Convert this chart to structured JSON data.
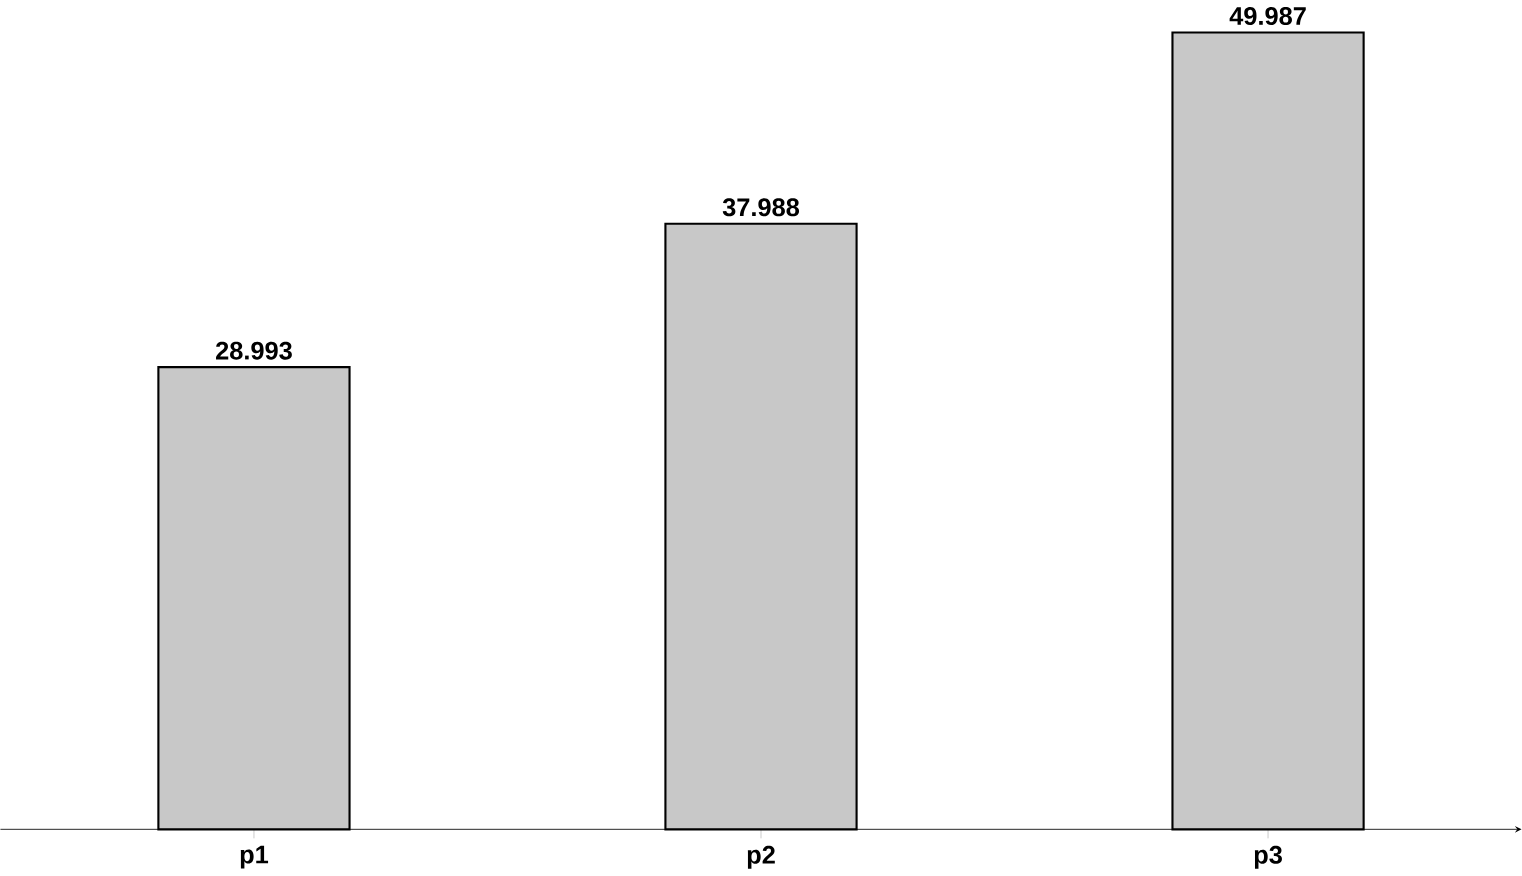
{
  "chart_data": {
    "type": "bar",
    "categories": [
      "p1",
      "p2",
      "p3"
    ],
    "values": [
      28.993,
      37.988,
      49.987
    ],
    "color": "#c8c8c8",
    "data_labels": true
  }
}
